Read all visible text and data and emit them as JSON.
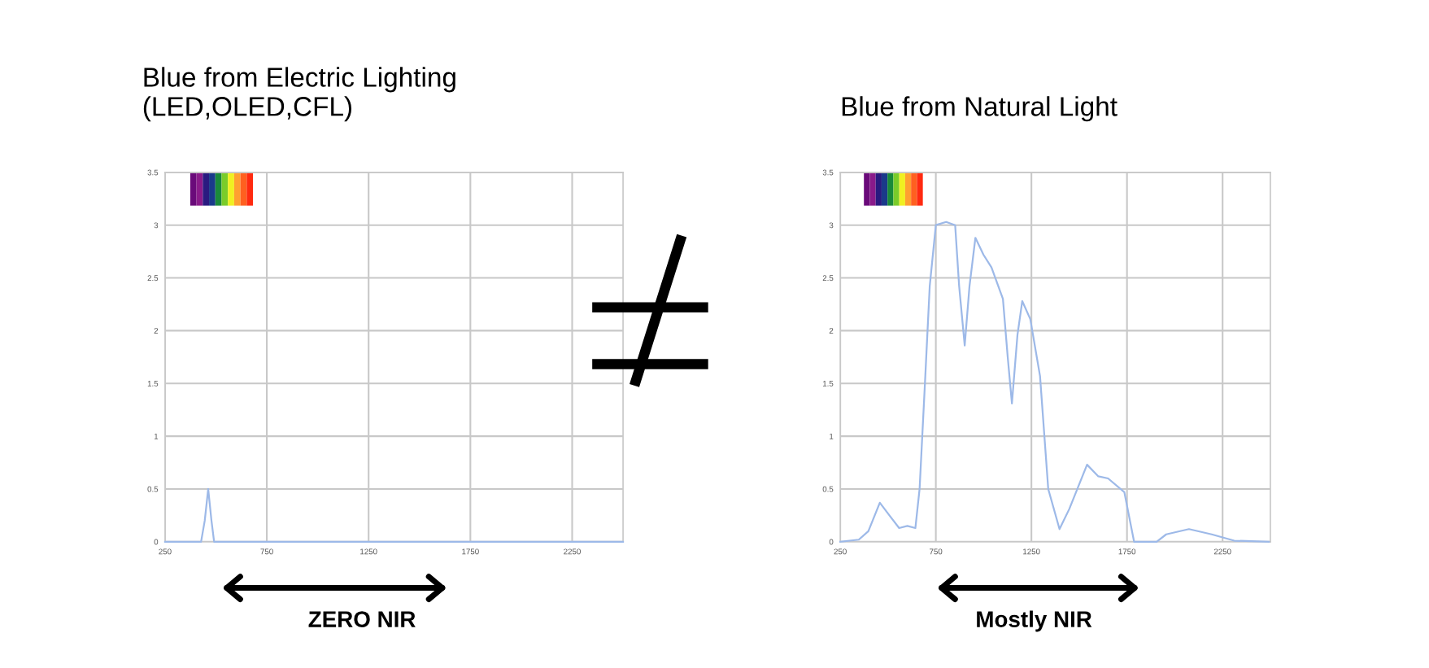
{
  "chart_data": [
    {
      "type": "line",
      "title": "Blue from Electric Lighting\n(LED,OLED,CFL)",
      "xlim": [
        250,
        2500
      ],
      "xticks": [
        250,
        750,
        1250,
        1750,
        2250
      ],
      "ylim": [
        0,
        3.5
      ],
      "yticks": [
        0,
        0.5,
        1,
        1.5,
        2,
        2.5,
        3,
        3.5
      ],
      "grid": true,
      "annotations": [
        "ZERO NIR"
      ],
      "series": [
        {
          "color": "#9db9e8",
          "x": [
            250,
            400,
            427,
            445,
            462,
            478,
            491,
            520,
            1000,
            1500,
            2000,
            2500
          ],
          "values": [
            0,
            0,
            0,
            0.2,
            0.5,
            0.2,
            0,
            0,
            0,
            0,
            0,
            0
          ]
        }
      ]
    },
    {
      "type": "line",
      "title": "Blue from Natural Light",
      "xlim": [
        250,
        2500
      ],
      "xticks": [
        250,
        750,
        1250,
        1750,
        2250
      ],
      "ylim": [
        0,
        3.5
      ],
      "yticks": [
        0,
        0.5,
        1,
        1.5,
        2,
        2.5,
        3,
        3.5
      ],
      "grid": true,
      "annotations": [
        "Mostly NIR"
      ],
      "series": [
        {
          "color": "#9db9e8",
          "x": [
            250,
            347,
            397,
            457,
            507,
            558,
            601,
            643,
            665,
            693,
            718,
            750,
            804,
            851,
            872,
            901,
            926,
            957,
            999,
            1041,
            1101,
            1126,
            1148,
            1177,
            1202,
            1244,
            1295,
            1338,
            1397,
            1448,
            1541,
            1600,
            1651,
            1736,
            1787,
            1905,
            1955,
            2074,
            2193,
            2311,
            2492
          ],
          "values": [
            0,
            0.02,
            0.1,
            0.37,
            0.25,
            0.13,
            0.15,
            0.13,
            0.5,
            1.5,
            2.42,
            3.0,
            3.03,
            3.0,
            2.42,
            1.86,
            2.42,
            2.88,
            2.72,
            2.6,
            2.3,
            1.75,
            1.31,
            1.96,
            2.28,
            2.11,
            1.57,
            0.5,
            0.12,
            0.31,
            0.73,
            0.62,
            0.6,
            0.47,
            0,
            0,
            0.07,
            0.12,
            0.07,
            0.01,
            0
          ]
        }
      ]
    }
  ]
}
